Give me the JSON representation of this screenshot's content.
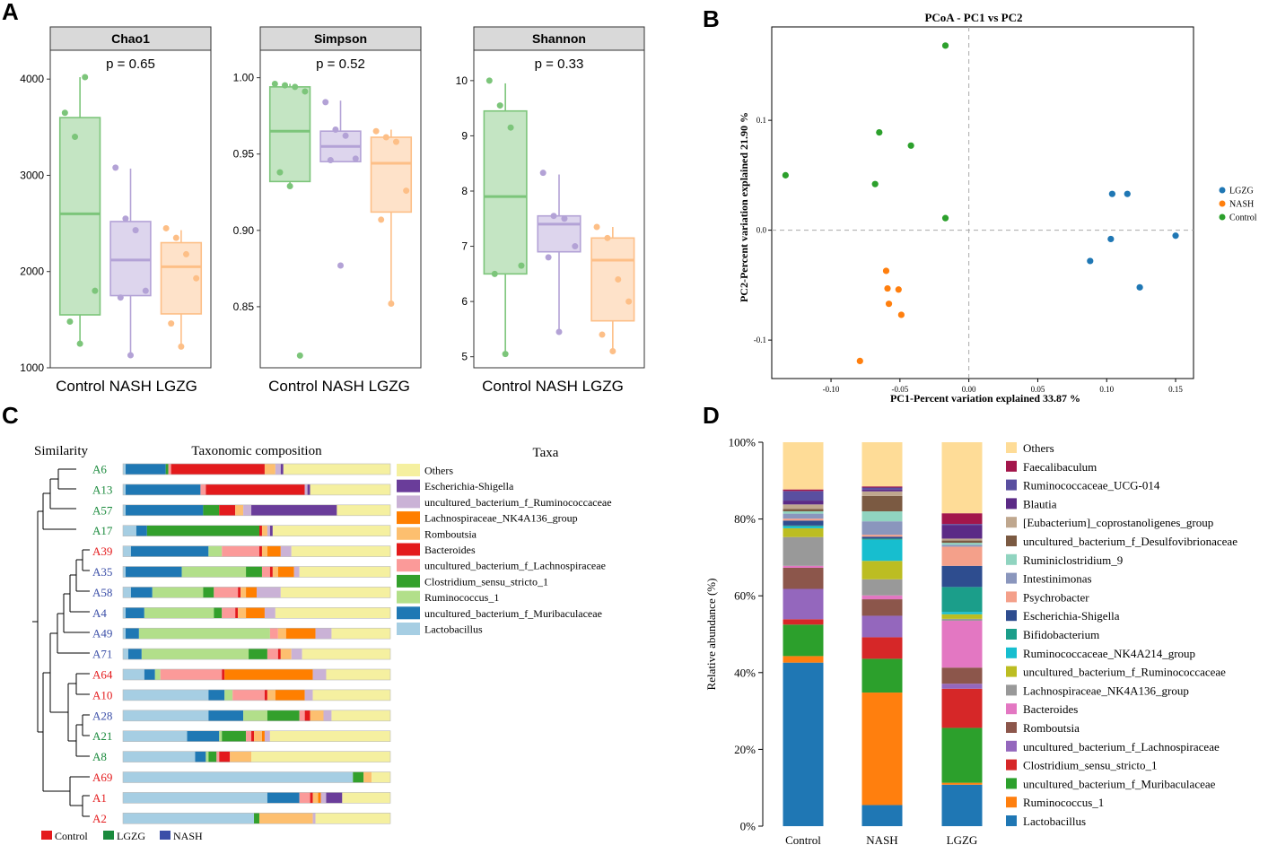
{
  "panel_letters": [
    "A",
    "B",
    "C",
    "D"
  ],
  "colors": {
    "Control": "#7cc57a",
    "NASH": "#b3a2d6",
    "LGZG": "#fdbf87",
    "pcoa_LGZG": "#1f77b4",
    "pcoa_NASH": "#ff7f0e",
    "pcoa_Control": "#2ca02c",
    "label_Control": "#e41a1c",
    "label_LGZG": "#1a8a3c",
    "label_NASH": "#3b4fa8"
  },
  "chart_data": [
    {
      "panel": "A",
      "type": "boxplot",
      "group_axis_label": "Control NASH LGZG",
      "groups": [
        "Control",
        "NASH",
        "LGZG"
      ],
      "facets": [
        {
          "title": "Chao1",
          "pvalue": "p = 0.65",
          "ylim": [
            1000,
            4300
          ],
          "yticks": [
            1000,
            2000,
            3000,
            4000
          ],
          "ytick_labels": [
            "1000",
            "2000",
            "3000",
            "4000"
          ],
          "boxes": [
            {
              "group": "Control",
              "q1": 1550,
              "median": 2600,
              "q3": 3600,
              "whisker_low": 1250,
              "whisker_high": 4020,
              "points": [
                3650,
                3400,
                4020,
                1800,
                1480,
                1250
              ]
            },
            {
              "group": "NASH",
              "q1": 1750,
              "median": 2120,
              "q3": 2520,
              "whisker_low": 1130,
              "whisker_high": 3070,
              "points": [
                3080,
                2550,
                2430,
                1800,
                1730,
                1130
              ]
            },
            {
              "group": "LGZG",
              "q1": 1560,
              "median": 2050,
              "q3": 2300,
              "whisker_low": 1200,
              "whisker_high": 2430,
              "points": [
                2450,
                2350,
                2180,
                1930,
                1460,
                1220
              ]
            }
          ]
        },
        {
          "title": "Simpson",
          "pvalue": "p = 0.52",
          "ylim": [
            0.81,
            1.018
          ],
          "yticks": [
            0.85,
            0.9,
            0.95,
            1.0
          ],
          "ytick_labels": [
            "0.85",
            "0.90",
            "0.95",
            "1.00"
          ],
          "boxes": [
            {
              "group": "Control",
              "q1": 0.932,
              "median": 0.965,
              "q3": 0.994,
              "whisker_low": 0.929,
              "whisker_high": 0.996,
              "points": [
                0.996,
                0.995,
                0.994,
                0.991,
                0.938,
                0.929,
                0.818
              ]
            },
            {
              "group": "NASH",
              "q1": 0.945,
              "median": 0.955,
              "q3": 0.965,
              "whisker_low": 0.945,
              "whisker_high": 0.985,
              "points": [
                0.984,
                0.966,
                0.962,
                0.947,
                0.946,
                0.877
              ]
            },
            {
              "group": "LGZG",
              "q1": 0.912,
              "median": 0.944,
              "q3": 0.961,
              "whisker_low": 0.853,
              "whisker_high": 0.966,
              "points": [
                0.965,
                0.961,
                0.958,
                0.926,
                0.907,
                0.852
              ]
            }
          ]
        },
        {
          "title": "Shannon",
          "pvalue": "p = 0.33",
          "ylim": [
            4.8,
            10.55
          ],
          "yticks": [
            5,
            6,
            7,
            8,
            9,
            10
          ],
          "ytick_labels": [
            "5",
            "6",
            "7",
            "8",
            "9",
            "10"
          ],
          "boxes": [
            {
              "group": "Control",
              "q1": 6.5,
              "median": 7.9,
              "q3": 9.45,
              "whisker_low": 5.0,
              "whisker_high": 9.95,
              "points": [
                10.0,
                9.55,
                9.15,
                6.65,
                6.5,
                5.05
              ]
            },
            {
              "group": "NASH",
              "q1": 6.9,
              "median": 7.4,
              "q3": 7.55,
              "whisker_low": 5.45,
              "whisker_high": 8.3,
              "points": [
                8.33,
                7.55,
                7.5,
                7.0,
                6.8,
                5.45
              ]
            },
            {
              "group": "LGZG",
              "q1": 5.65,
              "median": 6.75,
              "q3": 7.15,
              "whisker_low": 5.1,
              "whisker_high": 7.35,
              "points": [
                7.35,
                7.15,
                6.4,
                6.0,
                5.4,
                5.1
              ]
            }
          ]
        }
      ]
    },
    {
      "panel": "B",
      "type": "scatter",
      "title": "PCoA - PC1 vs PC2",
      "xlabel": "PC1-Percent variation explained 33.87 %",
      "ylabel": "PC2-Percent variation explained 21.90 %",
      "xlim": [
        -0.143,
        0.163
      ],
      "ylim": [
        -0.135,
        0.185
      ],
      "xticks": [
        -0.1,
        -0.05,
        0.0,
        0.05,
        0.1,
        0.15
      ],
      "xtick_labels": [
        "-0.10",
        "-0.05",
        "0.00",
        "0.05",
        "0.10",
        "0.15"
      ],
      "yticks": [
        -0.1,
        0.0,
        0.1
      ],
      "ytick_labels": [
        "-0.1",
        "0.0",
        "0.1"
      ],
      "legend_position": "right",
      "series": [
        {
          "name": "LGZG",
          "color": "#1f77b4",
          "points": [
            [
              0.104,
              0.033
            ],
            [
              0.115,
              0.033
            ],
            [
              0.103,
              -0.008
            ],
            [
              0.15,
              -0.005
            ],
            [
              0.088,
              -0.028
            ],
            [
              0.124,
              -0.052
            ]
          ]
        },
        {
          "name": "NASH",
          "color": "#ff7f0e",
          "points": [
            [
              -0.06,
              -0.037
            ],
            [
              -0.059,
              -0.053
            ],
            [
              -0.051,
              -0.054
            ],
            [
              -0.058,
              -0.067
            ],
            [
              -0.049,
              -0.077
            ],
            [
              -0.079,
              -0.119
            ]
          ]
        },
        {
          "name": "Control",
          "color": "#2ca02c",
          "points": [
            [
              -0.017,
              0.168
            ],
            [
              -0.065,
              0.089
            ],
            [
              -0.042,
              0.077
            ],
            [
              -0.133,
              0.05
            ],
            [
              -0.068,
              0.042
            ],
            [
              -0.017,
              0.011
            ]
          ]
        }
      ]
    },
    {
      "panel": "C",
      "type": "stacked_bar_horizontal",
      "title_left": "Similarity",
      "title_center": "Taxonomic composition",
      "legend_title": "Taxa",
      "samples": [
        {
          "name": "A6",
          "group": "LGZG"
        },
        {
          "name": "A13",
          "group": "LGZG"
        },
        {
          "name": "A57",
          "group": "LGZG"
        },
        {
          "name": "A17",
          "group": "LGZG"
        },
        {
          "name": "A39",
          "group": "Control"
        },
        {
          "name": "A35",
          "group": "NASH"
        },
        {
          "name": "A58",
          "group": "NASH"
        },
        {
          "name": "A4",
          "group": "NASH"
        },
        {
          "name": "A49",
          "group": "NASH"
        },
        {
          "name": "A71",
          "group": "NASH"
        },
        {
          "name": "A64",
          "group": "Control"
        },
        {
          "name": "A10",
          "group": "Control"
        },
        {
          "name": "A28",
          "group": "NASH"
        },
        {
          "name": "A21",
          "group": "LGZG"
        },
        {
          "name": "A8",
          "group": "LGZG"
        },
        {
          "name": "A69",
          "group": "Control"
        },
        {
          "name": "A1",
          "group": "Control"
        },
        {
          "name": "A2",
          "group": "Control"
        }
      ],
      "taxa": [
        {
          "name": "Lactobacillus",
          "color": "#a6cee3"
        },
        {
          "name": "uncultured_bacterium_f_Muribaculaceae",
          "color": "#1f78b4"
        },
        {
          "name": "Ruminococcus_1",
          "color": "#b2df8a"
        },
        {
          "name": "Clostridium_sensu_stricto_1",
          "color": "#33a02c"
        },
        {
          "name": "uncultured_bacterium_f_Lachnospiraceae",
          "color": "#fb9a99"
        },
        {
          "name": "Bacteroides",
          "color": "#e31a1c"
        },
        {
          "name": "Romboutsia",
          "color": "#fdbf6f"
        },
        {
          "name": "Lachnospiraceae_NK4A136_group",
          "color": "#ff7f00"
        },
        {
          "name": "uncultured_bacterium_f_Ruminococcaceae",
          "color": "#cab2d6"
        },
        {
          "name": "Escherichia-Shigella",
          "color": "#6a3d9a"
        },
        {
          "name": "Others",
          "color": "#f5f0a0"
        }
      ],
      "values": [
        [
          1,
          15,
          0,
          1,
          1,
          35,
          4,
          0,
          2,
          1,
          40
        ],
        [
          1,
          28,
          0,
          0,
          2,
          37,
          0,
          0,
          1,
          1,
          30
        ],
        [
          1,
          29,
          0,
          6,
          0,
          6,
          3,
          0,
          3,
          32,
          20
        ],
        [
          5,
          4,
          0,
          42,
          0,
          1,
          2,
          0,
          1,
          1,
          44
        ],
        [
          3,
          29,
          5,
          0,
          14,
          1,
          2,
          5,
          4,
          0,
          37
        ],
        [
          1,
          21,
          24,
          6,
          3,
          1,
          2,
          6,
          2,
          0,
          34
        ],
        [
          3,
          8,
          19,
          4,
          9,
          1,
          2,
          4,
          9,
          0,
          41
        ],
        [
          1,
          7,
          26,
          3,
          5,
          1,
          3,
          7,
          4,
          0,
          43
        ],
        [
          1,
          5,
          49,
          0,
          3,
          0,
          3,
          11,
          6,
          0,
          22
        ],
        [
          2,
          5,
          40,
          7,
          4,
          1,
          4,
          0,
          4,
          0,
          33
        ],
        [
          8,
          4,
          2,
          0,
          23,
          1,
          0,
          33,
          5,
          0,
          24
        ],
        [
          32,
          6,
          3,
          0,
          12,
          1,
          3,
          11,
          3,
          0,
          29
        ],
        [
          32,
          13,
          9,
          12,
          2,
          2,
          5,
          0,
          3,
          0,
          22
        ],
        [
          24,
          12,
          1,
          9,
          2,
          1,
          3,
          1,
          2,
          0,
          45
        ],
        [
          27,
          4,
          1,
          3,
          1,
          4,
          8,
          0,
          0,
          0,
          52
        ],
        [
          86,
          0,
          0,
          4,
          0,
          0,
          3,
          0,
          0,
          0,
          7
        ],
        [
          54,
          12,
          0,
          0,
          4,
          1,
          2,
          1,
          2,
          6,
          18
        ],
        [
          49,
          0,
          0,
          2,
          0,
          0,
          20,
          0,
          1,
          0,
          28
        ]
      ],
      "group_legend": [
        {
          "name": "Control",
          "color": "#e41a1c"
        },
        {
          "name": "LGZG",
          "color": "#1a8a3c"
        },
        {
          "name": "NASH",
          "color": "#3b4fa8"
        }
      ]
    },
    {
      "panel": "D",
      "type": "stacked_bar",
      "ylabel": "Relative abundance (%)",
      "ylim": [
        0,
        100
      ],
      "yticks": [
        0,
        20,
        40,
        60,
        80,
        100
      ],
      "ytick_labels": [
        "0%",
        "20%",
        "40%",
        "60%",
        "80%",
        "100%"
      ],
      "categories": [
        "Control",
        "NASH",
        "LGZG"
      ],
      "series": [
        {
          "name": "Lactobacillus",
          "color": "#1f77b4",
          "values": [
            42.6,
            5.5,
            10.8
          ]
        },
        {
          "name": "Ruminococcus_1",
          "color": "#ff7f0e",
          "values": [
            1.7,
            29.3,
            0.5
          ]
        },
        {
          "name": "uncultured_bacterium_f_Muribaculaceae",
          "color": "#2ca02c",
          "values": [
            8.2,
            8.8,
            14.3
          ]
        },
        {
          "name": "Clostridium_sensu_stricto_1",
          "color": "#d62728",
          "values": [
            1.4,
            5.6,
            10.2
          ]
        },
        {
          "name": "uncultured_bacterium_f_Lachnospiraceae",
          "color": "#9467bd",
          "values": [
            7.9,
            5.6,
            1.3
          ]
        },
        {
          "name": "Romboutsia",
          "color": "#8c564b",
          "values": [
            5.5,
            4.3,
            4.2
          ]
        },
        {
          "name": "Bacteroides",
          "color": "#e377c2",
          "values": [
            0.5,
            1.0,
            12.2
          ]
        },
        {
          "name": "Lachnospiraceae_NK4A136_group",
          "color": "#999999",
          "values": [
            7.5,
            4.2,
            0.5
          ]
        },
        {
          "name": "uncultured_bacterium_f_Ruminococcaceae",
          "color": "#bcbd22",
          "values": [
            2.3,
            4.8,
            1.2
          ]
        },
        {
          "name": "Ruminococcaceae_NK4A214_group",
          "color": "#17becf",
          "values": [
            0.5,
            5.5,
            0.6
          ]
        },
        {
          "name": "Bifidobacterium",
          "color": "#1b9e8a",
          "values": [
            0.2,
            0.3,
            6.5
          ]
        },
        {
          "name": "Escherichia-Shigella",
          "color": "#2e4d8f",
          "values": [
            1.3,
            0.5,
            5.5
          ]
        },
        {
          "name": "Psychrobacter",
          "color": "#f4a08a",
          "values": [
            0.5,
            0.5,
            5.0
          ]
        },
        {
          "name": "Intestinimonas",
          "color": "#8a96bd",
          "values": [
            1.3,
            3.5,
            0.5
          ]
        },
        {
          "name": "Ruminiclostridium_9",
          "color": "#90d4c0",
          "values": [
            0.6,
            2.6,
            0.5
          ]
        },
        {
          "name": "uncultured_bacterium_f_Desulfovibrionaceae",
          "color": "#7b5a42",
          "values": [
            0.6,
            4.0,
            0.6
          ]
        },
        {
          "name": "[Eubacterium]_coprostanoligenes_group",
          "color": "#bfa78e",
          "values": [
            1.2,
            1.2,
            0.5
          ]
        },
        {
          "name": "Blautia",
          "color": "#5b2a86",
          "values": [
            1.0,
            0.5,
            3.5
          ]
        },
        {
          "name": "Ruminococcaceae_UCG-014",
          "color": "#5a4fa0",
          "values": [
            2.5,
            0.5,
            0.3
          ]
        },
        {
          "name": "Faecalibaculum",
          "color": "#a3164b",
          "values": [
            0.4,
            0.3,
            2.8
          ]
        },
        {
          "name": "Others",
          "color": "#fedc97",
          "values": [
            12.3,
            11.5,
            18.5
          ]
        }
      ]
    }
  ]
}
